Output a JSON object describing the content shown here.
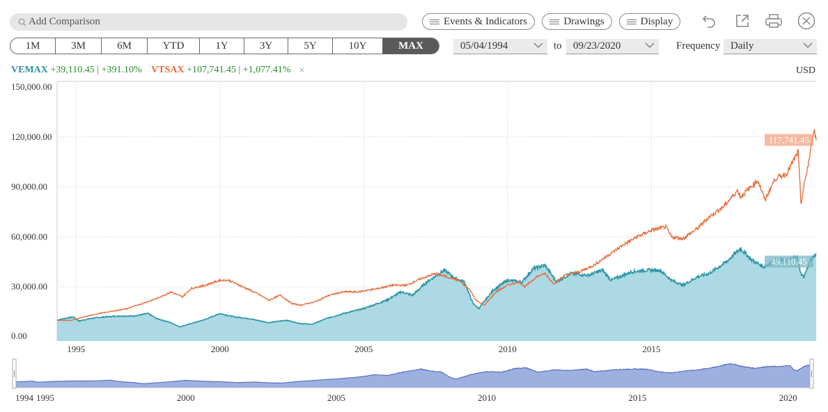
{
  "search": {
    "placeholder": "Add Comparison"
  },
  "toolbar": {
    "events_label": "Events & Indicators",
    "drawings_label": "Drawings",
    "display_label": "Display"
  },
  "icons": [
    "undo-icon",
    "popout-icon",
    "print-icon",
    "close-icon"
  ],
  "ranges": [
    "1M",
    "3M",
    "6M",
    "YTD",
    "1Y",
    "3Y",
    "5Y",
    "10Y",
    "MAX"
  ],
  "active_range": "MAX",
  "date_from": "05/04/1994",
  "date_to_label": "to",
  "date_to": "09/23/2020",
  "frequency_label": "Frequency",
  "frequency_value": "Daily",
  "legend": {
    "s1_ticker": "VEMAX",
    "s1_change": "+39,110.45 | +391.10%",
    "s2_ticker": "VTSAX",
    "s2_change": "+107,741.45 | +1,077.41%",
    "remove": "×"
  },
  "currency": "USD",
  "colors": {
    "vemax": "#2e96a6",
    "vemax_fill": "#acd9e3",
    "vtsax": "#e8693a",
    "nav_fill": "#9eb0e0",
    "nav_line": "#4a63b8"
  },
  "chart_data": {
    "type": "line",
    "title": "",
    "xlabel": "",
    "ylabel": "",
    "xlim": [
      "1994-05-04",
      "2020-09-23"
    ],
    "ylim": [
      0,
      150000
    ],
    "yticks": [
      "150,000.00",
      "120,000.00",
      "90,000.00",
      "60,000.00",
      "30,000.00",
      "0.00"
    ],
    "xticks": [
      "1995",
      "2000",
      "2005",
      "2010",
      "2015"
    ],
    "grid": true,
    "legend_position": "top-left",
    "series": [
      {
        "name": "VEMAX",
        "last_label": "49,110.45",
        "points": [
          [
            1994.34,
            10000
          ],
          [
            1994.6,
            11000
          ],
          [
            1994.9,
            12000
          ],
          [
            1995.1,
            9500
          ],
          [
            1995.5,
            11000
          ],
          [
            1996.0,
            12000
          ],
          [
            1996.5,
            12500
          ],
          [
            1997.0,
            12500
          ],
          [
            1997.5,
            14000
          ],
          [
            1997.8,
            11000
          ],
          [
            1998.3,
            8500
          ],
          [
            1998.6,
            6000
          ],
          [
            1999.0,
            8000
          ],
          [
            1999.5,
            10500
          ],
          [
            2000.0,
            14000
          ],
          [
            2000.5,
            12000
          ],
          [
            2001.0,
            11000
          ],
          [
            2001.7,
            8500
          ],
          [
            2002.3,
            10000
          ],
          [
            2002.8,
            8000
          ],
          [
            2003.2,
            7500
          ],
          [
            2003.7,
            11000
          ],
          [
            2004.3,
            14000
          ],
          [
            2005.0,
            17000
          ],
          [
            2005.8,
            22000
          ],
          [
            2006.3,
            27000
          ],
          [
            2006.7,
            25000
          ],
          [
            2007.2,
            33000
          ],
          [
            2007.8,
            40000
          ],
          [
            2008.2,
            35000
          ],
          [
            2008.5,
            33000
          ],
          [
            2008.8,
            20000
          ],
          [
            2009.0,
            17000
          ],
          [
            2009.5,
            28000
          ],
          [
            2010.0,
            34000
          ],
          [
            2010.5,
            33000
          ],
          [
            2010.9,
            41000
          ],
          [
            2011.3,
            43000
          ],
          [
            2011.7,
            33000
          ],
          [
            2012.2,
            38000
          ],
          [
            2012.8,
            37000
          ],
          [
            2013.3,
            40000
          ],
          [
            2013.6,
            34000
          ],
          [
            2014.3,
            39000
          ],
          [
            2014.8,
            40000
          ],
          [
            2015.3,
            40000
          ],
          [
            2015.7,
            34000
          ],
          [
            2016.1,
            31000
          ],
          [
            2016.6,
            36000
          ],
          [
            2017.0,
            38000
          ],
          [
            2017.6,
            45000
          ],
          [
            2018.1,
            53000
          ],
          [
            2018.5,
            46000
          ],
          [
            2018.9,
            42000
          ],
          [
            2019.3,
            46000
          ],
          [
            2019.8,
            46000
          ],
          [
            2020.05,
            49000
          ],
          [
            2020.2,
            38000
          ],
          [
            2020.3,
            36000
          ],
          [
            2020.5,
            45000
          ],
          [
            2020.73,
            50000
          ]
        ]
      },
      {
        "name": "VTSAX",
        "last_label": "117,741.45",
        "points": [
          [
            1994.34,
            10000
          ],
          [
            1994.8,
            9800
          ],
          [
            1995.3,
            12000
          ],
          [
            1995.8,
            14000
          ],
          [
            1996.3,
            15500
          ],
          [
            1996.8,
            17000
          ],
          [
            1997.3,
            20000
          ],
          [
            1997.8,
            23000
          ],
          [
            1998.3,
            27000
          ],
          [
            1998.7,
            24000
          ],
          [
            1999.0,
            29000
          ],
          [
            1999.5,
            31000
          ],
          [
            2000.0,
            34000
          ],
          [
            2000.3,
            34000
          ],
          [
            2000.8,
            30000
          ],
          [
            2001.3,
            26000
          ],
          [
            2001.7,
            22000
          ],
          [
            2002.1,
            25000
          ],
          [
            2002.5,
            20000
          ],
          [
            2002.8,
            19000
          ],
          [
            2003.3,
            21000
          ],
          [
            2003.8,
            25000
          ],
          [
            2004.3,
            27000
          ],
          [
            2004.8,
            27000
          ],
          [
            2005.5,
            29000
          ],
          [
            2006.0,
            31000
          ],
          [
            2006.5,
            31000
          ],
          [
            2007.0,
            35000
          ],
          [
            2007.5,
            38000
          ],
          [
            2007.9,
            36000
          ],
          [
            2008.3,
            34000
          ],
          [
            2008.7,
            28000
          ],
          [
            2008.9,
            22000
          ],
          [
            2009.2,
            19000
          ],
          [
            2009.6,
            27000
          ],
          [
            2010.0,
            31000
          ],
          [
            2010.4,
            33000
          ],
          [
            2010.6,
            30000
          ],
          [
            2011.0,
            36000
          ],
          [
            2011.3,
            38000
          ],
          [
            2011.6,
            32000
          ],
          [
            2012.0,
            37000
          ],
          [
            2012.5,
            39000
          ],
          [
            2013.0,
            43000
          ],
          [
            2013.5,
            49000
          ],
          [
            2014.0,
            55000
          ],
          [
            2014.5,
            60000
          ],
          [
            2015.0,
            64000
          ],
          [
            2015.5,
            66000
          ],
          [
            2015.7,
            60000
          ],
          [
            2016.1,
            59000
          ],
          [
            2016.6,
            65000
          ],
          [
            2017.0,
            72000
          ],
          [
            2017.5,
            78000
          ],
          [
            2018.0,
            88000
          ],
          [
            2018.1,
            84000
          ],
          [
            2018.7,
            94000
          ],
          [
            2018.95,
            82000
          ],
          [
            2019.3,
            95000
          ],
          [
            2019.7,
            98000
          ],
          [
            2020.1,
            111000
          ],
          [
            2020.2,
            80000
          ],
          [
            2020.3,
            90000
          ],
          [
            2020.5,
            108000
          ],
          [
            2020.65,
            125000
          ],
          [
            2020.73,
            118000
          ]
        ]
      }
    ],
    "navigator": {
      "xticks": [
        "1994",
        "1995",
        "2000",
        "2005",
        "2010",
        "2015",
        "2020"
      ]
    }
  }
}
